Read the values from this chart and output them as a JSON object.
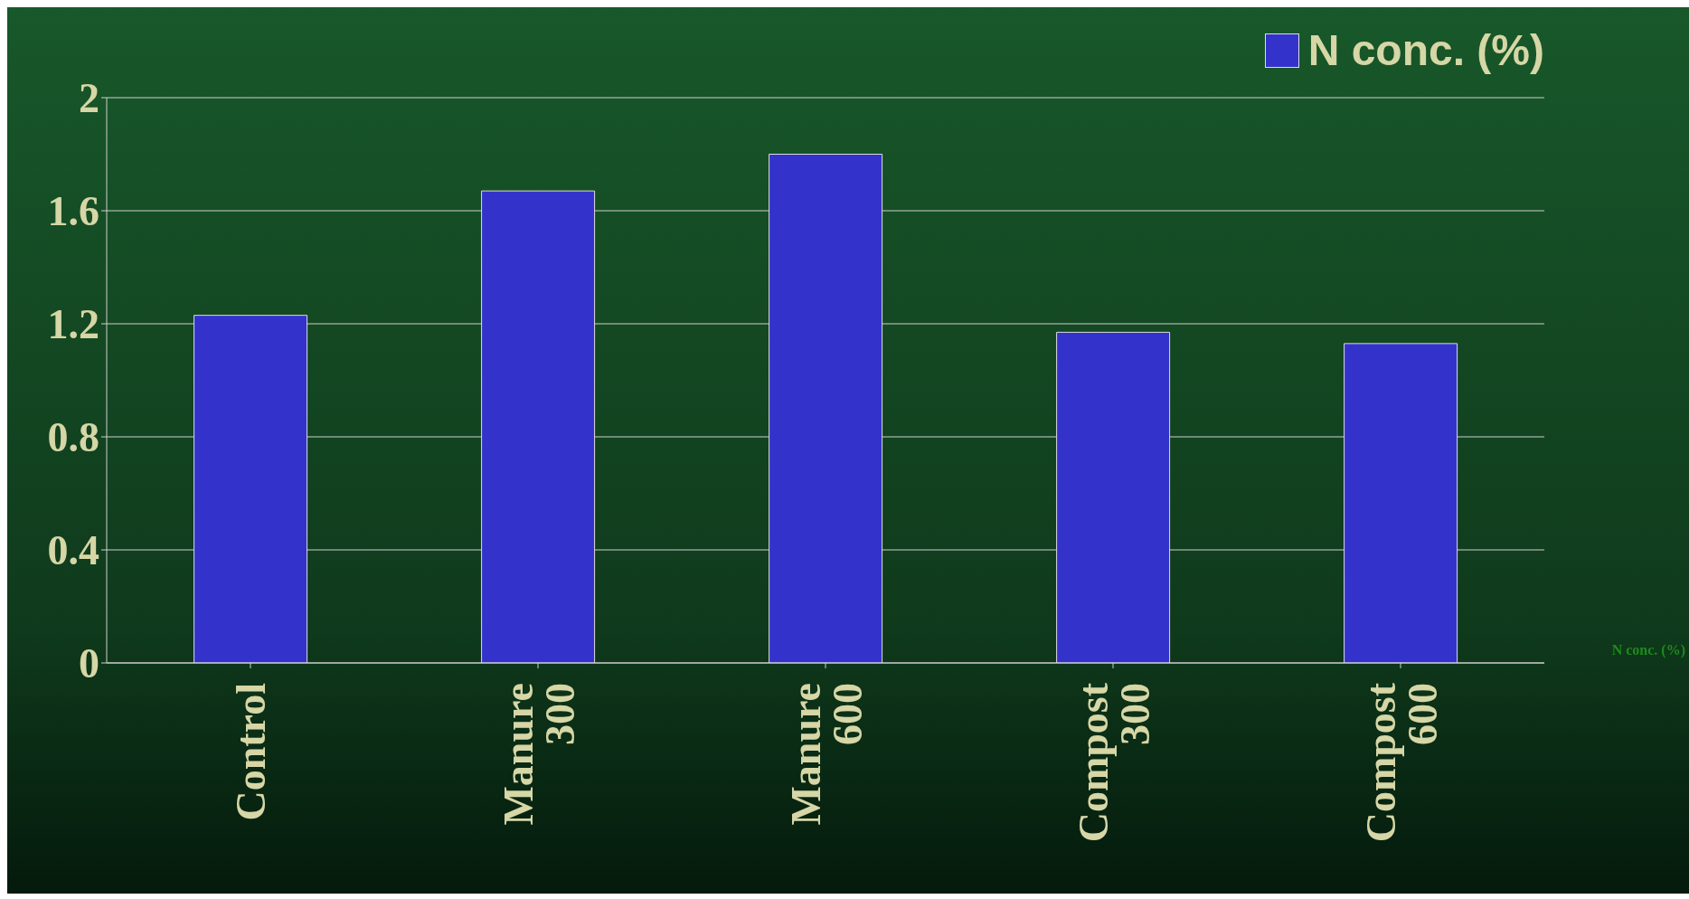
{
  "chart_data": {
    "type": "bar",
    "categories": [
      "Control",
      "Manure 300",
      "Manure 600",
      "Compost 300",
      "Compost 600"
    ],
    "series": [
      {
        "name": "N conc. (%)",
        "color": "#3333cc",
        "values": [
          1.23,
          1.67,
          1.8,
          1.17,
          1.13
        ]
      }
    ],
    "ylim": [
      0,
      2
    ],
    "yticks": [
      0,
      0.4,
      0.8,
      1.2,
      1.6,
      2
    ],
    "grid": "y",
    "legend": "top right",
    "annotations": [
      "N conc. (%)"
    ]
  }
}
